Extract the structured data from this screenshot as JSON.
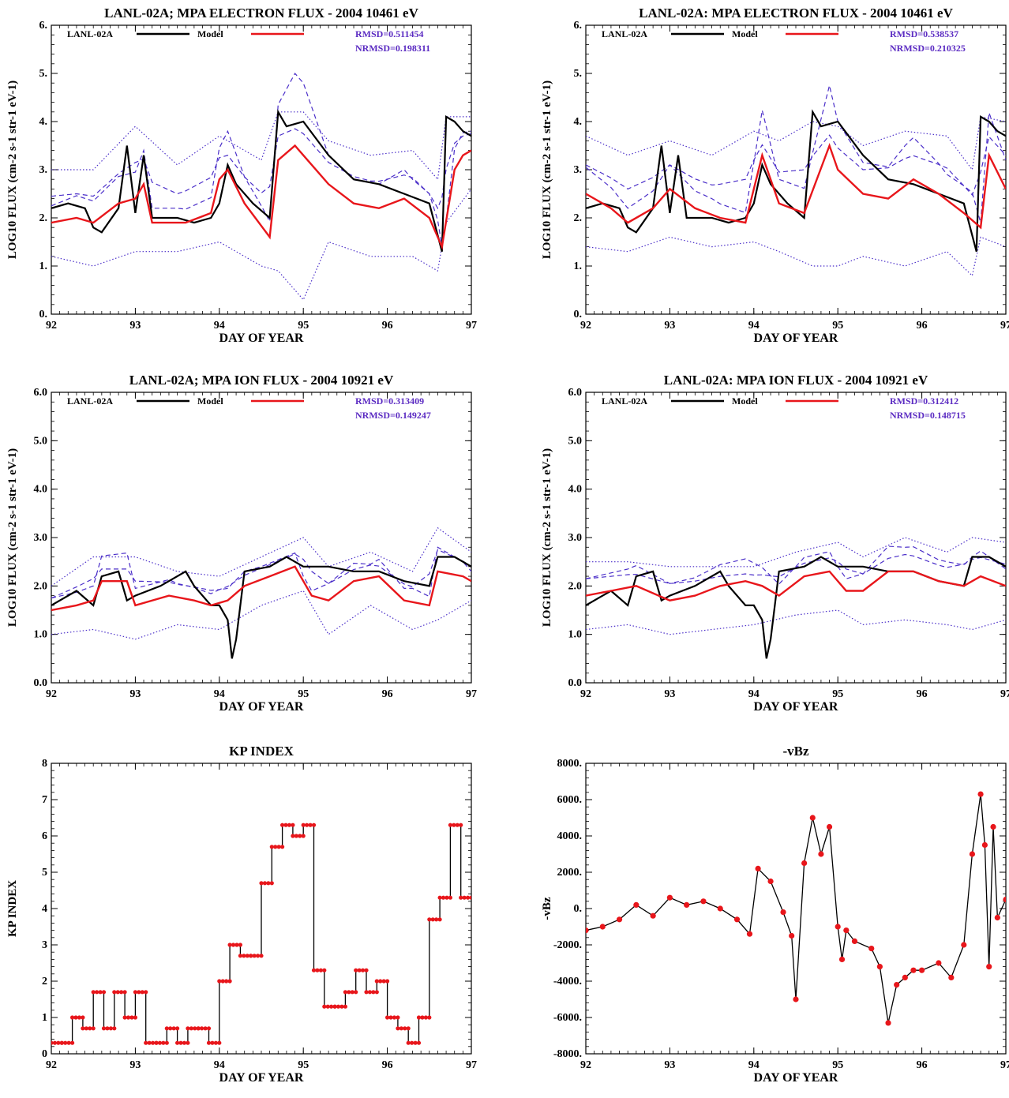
{
  "figure": {
    "colors": {
      "observed": "#000000",
      "model": "#e8161b",
      "ensemble": "#4b2fc9",
      "stats": "#5b2bc2",
      "kp_marker": "#e8161b"
    }
  },
  "chart_data": [
    {
      "type": "line",
      "title": "LANL-02A; MPA ELECTRON FLUX -  2004      10461 eV",
      "xlabel": "DAY OF YEAR",
      "ylabel": "LOG10 FLUX (cm-2 s-1 str-1 eV-1)",
      "xlim": [
        92,
        97
      ],
      "ylim": [
        0,
        6
      ],
      "xticks": [
        92,
        93,
        94,
        95,
        96,
        97
      ],
      "xtick_labels": [
        "92",
        "93",
        "94",
        "95",
        "96",
        "97"
      ],
      "yticks": [
        0,
        1,
        2,
        3,
        4,
        5,
        6
      ],
      "ytick_labels": [
        "0.",
        "1.",
        "2.",
        "3.",
        "4.",
        "5.",
        "6."
      ],
      "legend": {
        "observed_label": "LANL-02A",
        "model_label": "Model",
        "rmsd": "RMSD=0.511454",
        "nrmsd": "NRMSD=0.198311",
        "placement": "top"
      },
      "series": [
        {
          "name": "LANL-02A",
          "role": "observed",
          "x": [
            92.0,
            92.2,
            92.4,
            92.5,
            92.6,
            92.8,
            92.9,
            93.0,
            93.1,
            93.2,
            93.5,
            93.7,
            93.9,
            94.0,
            94.1,
            94.2,
            94.4,
            94.6,
            94.7,
            94.8,
            95.0,
            95.3,
            95.6,
            95.9,
            96.2,
            96.5,
            96.65,
            96.7,
            96.8,
            96.9,
            97.0
          ],
          "values": [
            2.2,
            2.3,
            2.2,
            1.8,
            1.7,
            2.2,
            3.5,
            2.1,
            3.3,
            2.0,
            2.0,
            1.9,
            2.0,
            2.3,
            3.1,
            2.7,
            2.3,
            2.0,
            4.2,
            3.9,
            4.0,
            3.3,
            2.8,
            2.7,
            2.5,
            2.3,
            1.3,
            4.1,
            4.0,
            3.8,
            3.7
          ]
        },
        {
          "name": "Model",
          "role": "model",
          "x": [
            92.0,
            92.3,
            92.5,
            92.8,
            93.0,
            93.1,
            93.2,
            93.6,
            93.9,
            94.0,
            94.1,
            94.3,
            94.6,
            94.7,
            94.9,
            95.0,
            95.3,
            95.6,
            95.9,
            96.2,
            96.5,
            96.65,
            96.8,
            96.9,
            97.0
          ],
          "values": [
            1.9,
            2.0,
            1.9,
            2.3,
            2.4,
            2.7,
            1.9,
            1.9,
            2.1,
            2.8,
            3.0,
            2.3,
            1.6,
            3.2,
            3.5,
            3.3,
            2.7,
            2.3,
            2.2,
            2.4,
            2.0,
            1.4,
            3.0,
            3.3,
            3.4
          ]
        }
      ],
      "bands": {
        "name": "Model ensemble range",
        "x": [
          92.0,
          92.5,
          93.0,
          93.5,
          94.0,
          94.5,
          94.7,
          95.0,
          95.3,
          95.8,
          96.3,
          96.6,
          96.7,
          97.0
        ],
        "lower": [
          1.2,
          1.0,
          1.3,
          1.3,
          1.5,
          1.0,
          0.9,
          0.3,
          1.5,
          1.2,
          1.2,
          0.9,
          1.9,
          2.6
        ],
        "upper": [
          3.0,
          3.0,
          3.9,
          3.1,
          3.7,
          3.2,
          4.2,
          4.2,
          3.6,
          3.3,
          3.4,
          2.8,
          4.1,
          4.1
        ]
      }
    },
    {
      "type": "line",
      "title": "LANL-02A: MPA ELECTRON FLUX -  2004      10461 eV",
      "xlabel": "DAY OF YEAR",
      "ylabel": "LOG10 FLUX (cm-2 s-1 str-1 eV-1)",
      "xlim": [
        92,
        97
      ],
      "ylim": [
        0,
        6
      ],
      "xticks": [
        92,
        93,
        94,
        95,
        96,
        97
      ],
      "xtick_labels": [
        "92",
        "93",
        "94",
        "95",
        "96",
        "97"
      ],
      "yticks": [
        0,
        1,
        2,
        3,
        4,
        5,
        6
      ],
      "ytick_labels": [
        "0.",
        "1.",
        "2.",
        "3.",
        "4.",
        "5.",
        "6."
      ],
      "legend": {
        "observed_label": "LANL-02A",
        "model_label": "Model",
        "rmsd": "RMSD=0.538537",
        "nrmsd": "NRMSD=0.210325",
        "placement": "top"
      },
      "series": [
        {
          "name": "LANL-02A",
          "role": "observed",
          "x": [
            92.0,
            92.2,
            92.4,
            92.5,
            92.6,
            92.8,
            92.9,
            93.0,
            93.1,
            93.2,
            93.5,
            93.7,
            93.9,
            94.0,
            94.1,
            94.2,
            94.4,
            94.6,
            94.7,
            94.8,
            95.0,
            95.3,
            95.6,
            95.9,
            96.2,
            96.5,
            96.65,
            96.7,
            96.8,
            96.9,
            97.0
          ],
          "values": [
            2.2,
            2.3,
            2.2,
            1.8,
            1.7,
            2.2,
            3.5,
            2.1,
            3.3,
            2.0,
            2.0,
            1.9,
            2.0,
            2.3,
            3.1,
            2.7,
            2.3,
            2.0,
            4.2,
            3.9,
            4.0,
            3.3,
            2.8,
            2.7,
            2.5,
            2.3,
            1.3,
            4.1,
            4.0,
            3.8,
            3.7
          ]
        },
        {
          "name": "Model",
          "role": "model",
          "x": [
            92.0,
            92.3,
            92.5,
            92.8,
            93.0,
            93.3,
            93.6,
            93.9,
            94.1,
            94.3,
            94.6,
            94.9,
            95.0,
            95.3,
            95.6,
            95.9,
            96.2,
            96.5,
            96.7,
            96.8,
            97.0
          ],
          "values": [
            2.5,
            2.2,
            1.9,
            2.2,
            2.6,
            2.2,
            2.0,
            1.9,
            3.3,
            2.3,
            2.1,
            3.5,
            3.0,
            2.5,
            2.4,
            2.8,
            2.5,
            2.1,
            1.8,
            3.3,
            2.6
          ]
        }
      ],
      "bands": {
        "name": "Model ensemble range",
        "x": [
          92.0,
          92.5,
          93.0,
          93.5,
          94.0,
          94.3,
          94.7,
          95.0,
          95.3,
          95.8,
          96.3,
          96.6,
          96.7,
          97.0
        ],
        "lower": [
          1.4,
          1.3,
          1.6,
          1.4,
          1.5,
          1.3,
          1.0,
          1.0,
          1.2,
          1.0,
          1.3,
          0.8,
          1.6,
          1.4
        ],
        "upper": [
          3.7,
          3.3,
          3.6,
          3.3,
          3.8,
          3.6,
          4.0,
          3.9,
          3.5,
          3.8,
          3.7,
          3.0,
          4.1,
          4.0
        ]
      }
    },
    {
      "type": "line",
      "title": "LANL-02A; MPA ION FLUX -  2004      10921 eV",
      "xlabel": "DAY OF YEAR",
      "ylabel": "LOG10 FLUX (cm-2 s-1 str-1 eV-1)",
      "xlim": [
        92,
        97
      ],
      "ylim": [
        0,
        6
      ],
      "xticks": [
        92,
        93,
        94,
        95,
        96,
        97
      ],
      "xtick_labels": [
        "92",
        "93",
        "94",
        "95",
        "96",
        "97"
      ],
      "yticks": [
        0,
        1,
        2,
        3,
        4,
        5,
        6
      ],
      "ytick_labels": [
        "0.0",
        "1.0",
        "2.0",
        "3.0",
        "4.0",
        "5.0",
        "6.0"
      ],
      "legend": {
        "observed_label": "LANL-02A",
        "model_label": "Model",
        "rmsd": "RMSD=0.313409",
        "nrmsd": "NRMSD=0.149247",
        "placement": "top"
      },
      "series": [
        {
          "name": "LANL-02A",
          "role": "observed",
          "x": [
            92.0,
            92.3,
            92.5,
            92.6,
            92.8,
            92.9,
            93.0,
            93.3,
            93.6,
            93.7,
            93.9,
            94.0,
            94.1,
            94.15,
            94.2,
            94.3,
            94.6,
            94.8,
            95.0,
            95.3,
            95.6,
            95.9,
            96.2,
            96.5,
            96.6,
            96.8,
            97.0
          ],
          "values": [
            1.6,
            1.9,
            1.6,
            2.2,
            2.3,
            1.7,
            1.8,
            2.0,
            2.3,
            2.0,
            1.6,
            1.6,
            1.3,
            0.5,
            0.9,
            2.3,
            2.4,
            2.6,
            2.4,
            2.4,
            2.3,
            2.3,
            2.1,
            2.0,
            2.6,
            2.6,
            2.4
          ]
        },
        {
          "name": "Model",
          "role": "model",
          "x": [
            92.0,
            92.3,
            92.5,
            92.6,
            92.9,
            93.0,
            93.4,
            93.7,
            93.9,
            94.1,
            94.3,
            94.6,
            94.9,
            95.1,
            95.3,
            95.6,
            95.9,
            96.2,
            96.5,
            96.6,
            96.9,
            97.0
          ],
          "values": [
            1.5,
            1.6,
            1.7,
            2.1,
            2.1,
            1.6,
            1.8,
            1.7,
            1.6,
            1.7,
            2.0,
            2.2,
            2.4,
            1.8,
            1.7,
            2.1,
            2.2,
            1.7,
            1.6,
            2.3,
            2.2,
            2.1
          ]
        }
      ],
      "bands": {
        "name": "Model ensemble range",
        "x": [
          92.0,
          92.5,
          93.0,
          93.5,
          94.0,
          94.5,
          95.0,
          95.3,
          95.8,
          96.3,
          96.6,
          97.0
        ],
        "lower": [
          1.0,
          1.1,
          0.9,
          1.2,
          1.1,
          1.6,
          1.9,
          1.0,
          1.6,
          1.1,
          1.3,
          1.7
        ],
        "upper": [
          2.0,
          2.6,
          2.6,
          2.3,
          2.2,
          2.6,
          3.0,
          2.4,
          2.7,
          2.3,
          3.2,
          2.7
        ]
      }
    },
    {
      "type": "line",
      "title": "LANL-02A: MPA ION FLUX -  2004      10921 eV",
      "xlabel": "DAY OF YEAR",
      "ylabel": "LOG10 FLUX (cm-2 s-1 str-1 eV-1)",
      "xlim": [
        92,
        97
      ],
      "ylim": [
        0,
        6
      ],
      "xticks": [
        92,
        93,
        94,
        95,
        96,
        97
      ],
      "xtick_labels": [
        "92",
        "93",
        "94",
        "95",
        "96",
        "97"
      ],
      "yticks": [
        0,
        1,
        2,
        3,
        4,
        5,
        6
      ],
      "ytick_labels": [
        "0.0",
        "1.0",
        "2.0",
        "3.0",
        "4.0",
        "5.0",
        "6.0"
      ],
      "legend": {
        "observed_label": "LANL-02A",
        "model_label": "Model",
        "rmsd": "RMSD=0.312412",
        "nrmsd": "NRMSD=0.148715",
        "placement": "top"
      },
      "series": [
        {
          "name": "LANL-02A",
          "role": "observed",
          "x": [
            92.0,
            92.3,
            92.5,
            92.6,
            92.8,
            92.9,
            93.0,
            93.3,
            93.6,
            93.7,
            93.9,
            94.0,
            94.1,
            94.15,
            94.2,
            94.3,
            94.6,
            94.8,
            95.0,
            95.3,
            95.6,
            95.9,
            96.2,
            96.5,
            96.6,
            96.8,
            97.0
          ],
          "values": [
            1.6,
            1.9,
            1.6,
            2.2,
            2.3,
            1.7,
            1.8,
            2.0,
            2.3,
            2.0,
            1.6,
            1.6,
            1.3,
            0.5,
            0.9,
            2.3,
            2.4,
            2.6,
            2.4,
            2.4,
            2.3,
            2.3,
            2.1,
            2.0,
            2.6,
            2.6,
            2.4
          ]
        },
        {
          "name": "Model",
          "role": "model",
          "x": [
            92.0,
            92.3,
            92.6,
            93.0,
            93.3,
            93.6,
            93.9,
            94.1,
            94.3,
            94.6,
            94.9,
            95.1,
            95.3,
            95.6,
            95.9,
            96.2,
            96.5,
            96.7,
            97.0
          ],
          "values": [
            1.8,
            1.9,
            2.0,
            1.7,
            1.8,
            2.0,
            2.1,
            2.0,
            1.8,
            2.2,
            2.3,
            1.9,
            1.9,
            2.3,
            2.3,
            2.1,
            2.0,
            2.2,
            2.0
          ]
        }
      ],
      "bands": {
        "name": "Model ensemble range",
        "x": [
          92.0,
          92.5,
          93.0,
          93.5,
          94.0,
          94.5,
          95.0,
          95.3,
          95.8,
          96.3,
          96.6,
          97.0
        ],
        "lower": [
          1.1,
          1.2,
          1.0,
          1.1,
          1.2,
          1.4,
          1.5,
          1.2,
          1.3,
          1.2,
          1.1,
          1.3
        ],
        "upper": [
          2.5,
          2.5,
          2.4,
          2.4,
          2.4,
          2.7,
          2.9,
          2.6,
          3.0,
          2.7,
          3.0,
          2.9
        ]
      }
    },
    {
      "type": "line",
      "title": "KP INDEX",
      "xlabel": "DAY OF YEAR",
      "ylabel": "KP INDEX",
      "xlim": [
        92,
        97
      ],
      "ylim": [
        0,
        8
      ],
      "xticks": [
        92,
        93,
        94,
        95,
        96,
        97
      ],
      "xtick_labels": [
        "92",
        "93",
        "94",
        "95",
        "96",
        "97"
      ],
      "yticks": [
        0,
        1,
        2,
        3,
        4,
        5,
        6,
        7,
        8
      ],
      "ytick_labels": [
        "0",
        "1",
        "2",
        "3",
        "4",
        "5",
        "6",
        "7",
        "8"
      ],
      "series": [
        {
          "role": "kp",
          "x": [
            92.0,
            92.125,
            92.25,
            92.375,
            92.5,
            92.625,
            92.75,
            92.875,
            93.0,
            93.125,
            93.25,
            93.375,
            93.5,
            93.625,
            93.75,
            93.875,
            94.0,
            94.125,
            94.25,
            94.375,
            94.5,
            94.625,
            94.75,
            94.875,
            95.0,
            95.125,
            95.25,
            95.375,
            95.5,
            95.625,
            95.75,
            95.875,
            96.0,
            96.125,
            96.25,
            96.375,
            96.5,
            96.625,
            96.75,
            96.875
          ],
          "values": [
            0.3,
            0.3,
            1.0,
            0.7,
            1.7,
            0.7,
            1.7,
            1.0,
            1.7,
            0.3,
            0.3,
            0.7,
            0.3,
            0.7,
            0.7,
            0.3,
            2.0,
            3.0,
            2.7,
            2.7,
            4.7,
            5.7,
            6.3,
            6.0,
            6.3,
            2.3,
            1.3,
            1.3,
            1.7,
            2.3,
            1.7,
            2.0,
            1.0,
            0.7,
            0.3,
            1.0,
            3.7,
            4.3,
            6.3,
            4.3
          ]
        }
      ]
    },
    {
      "type": "line",
      "title": "-vBz",
      "xlabel": "DAY OF YEAR",
      "ylabel": "-vBz",
      "xlim": [
        92,
        97
      ],
      "ylim": [
        -8000,
        8000
      ],
      "xticks": [
        92,
        93,
        94,
        95,
        96,
        97
      ],
      "xtick_labels": [
        "92",
        "93",
        "94",
        "95",
        "96",
        "97"
      ],
      "yticks": [
        -8000,
        -6000,
        -4000,
        -2000,
        0,
        2000,
        4000,
        6000,
        8000
      ],
      "ytick_labels": [
        "-8000.",
        "-6000.",
        "-4000.",
        "-2000.",
        "0.",
        "2000.",
        "4000.",
        "6000.",
        "8000."
      ],
      "series": [
        {
          "role": "vbz",
          "x": [
            92.0,
            92.2,
            92.4,
            92.6,
            92.8,
            93.0,
            93.2,
            93.4,
            93.6,
            93.8,
            93.95,
            94.05,
            94.2,
            94.35,
            94.45,
            94.5,
            94.6,
            94.7,
            94.8,
            94.9,
            95.0,
            95.05,
            95.1,
            95.2,
            95.4,
            95.5,
            95.6,
            95.7,
            95.8,
            95.9,
            96.0,
            96.2,
            96.35,
            96.5,
            96.6,
            96.7,
            96.75,
            96.8,
            96.85,
            96.9,
            97.0
          ],
          "values": [
            -1200,
            -1000,
            -600,
            200,
            -400,
            600,
            200,
            400,
            0,
            -600,
            -1400,
            2200,
            1500,
            -200,
            -1500,
            -5000,
            2500,
            5000,
            3000,
            4500,
            -1000,
            -2800,
            -1200,
            -1800,
            -2200,
            -3200,
            -6300,
            -4200,
            -3800,
            -3400,
            -3400,
            -3000,
            -3800,
            -2000,
            3000,
            6300,
            3500,
            -3200,
            4500,
            -500,
            500
          ]
        }
      ]
    }
  ]
}
